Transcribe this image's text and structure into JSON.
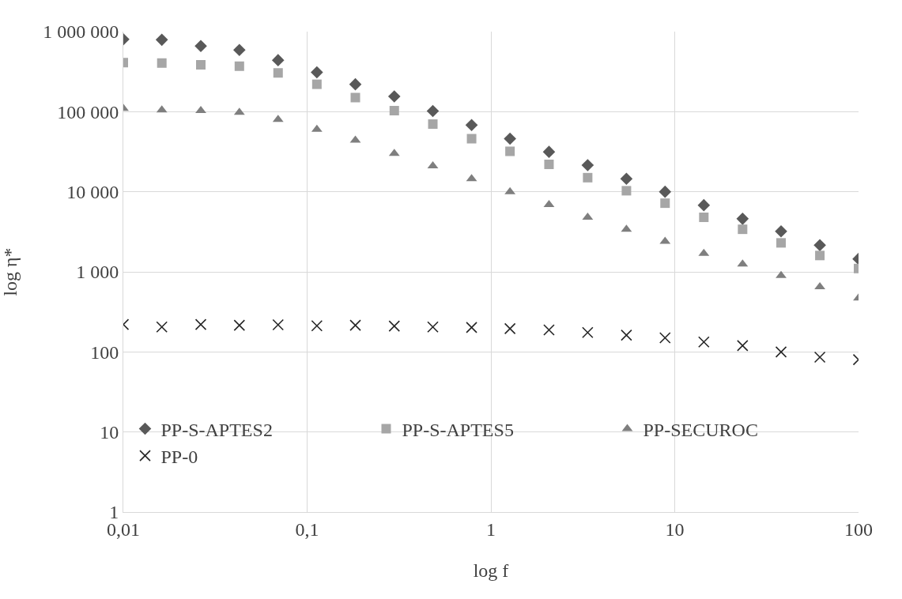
{
  "chart_data": {
    "type": "scatter",
    "xlabel": "log f",
    "ylabel": "log η*",
    "log": "xy",
    "grid": true,
    "legend": "bottom",
    "x": [
      0.01,
      0.0162,
      0.0264,
      0.0428,
      0.0695,
      0.113,
      0.183,
      0.298,
      0.483,
      0.785,
      1.27,
      2.07,
      3.36,
      5.46,
      8.86,
      14.4,
      23.4,
      37.9,
      61.6,
      100
    ],
    "xlim": [
      0.01,
      100
    ],
    "xticks": [
      {
        "value": 0.01,
        "label": "0,01"
      },
      {
        "value": 0.1,
        "label": "0,1"
      },
      1,
      10,
      100
    ],
    "ylim": [
      1,
      1000000
    ],
    "yticks": [
      1,
      10,
      100,
      {
        "value": 1000,
        "label": "1 000"
      },
      {
        "value": 10000,
        "label": "10 000"
      },
      {
        "value": 100000,
        "label": "100 000"
      },
      {
        "value": 1000000,
        "label": "1 000 000"
      }
    ],
    "series": [
      {
        "name": "PP-S-APTES2",
        "color": "#595959",
        "marker": "diamond",
        "values": [
          800000,
          790000,
          660000,
          590000,
          440000,
          310000,
          220000,
          155000,
          102000,
          68000,
          46000,
          31500,
          21500,
          14500,
          10000,
          6800,
          4600,
          3200,
          2150,
          1450
        ]
      },
      {
        "name": "PP-S-APTES5",
        "color": "#a6a6a6",
        "marker": "square",
        "values": [
          410000,
          405000,
          385000,
          370000,
          305000,
          220000,
          150000,
          103000,
          70000,
          46000,
          32000,
          22000,
          15000,
          10300,
          7200,
          4800,
          3400,
          2300,
          1600,
          1100
        ]
      },
      {
        "name": "PP-SECUROC",
        "color": "#7f7f7f",
        "marker": "triangle",
        "values": [
          110000,
          105000,
          103000,
          98000,
          80000,
          60000,
          44000,
          30000,
          21000,
          14500,
          10000,
          6900,
          4800,
          3400,
          2400,
          1700,
          1250,
          900,
          650,
          470
        ]
      },
      {
        "name": "PP-0",
        "color": "#262626",
        "marker": "cross",
        "values": [
          220,
          205,
          220,
          215,
          218,
          212,
          215,
          210,
          205,
          202,
          195,
          188,
          175,
          162,
          150,
          133,
          120,
          100,
          86,
          80
        ]
      }
    ]
  }
}
